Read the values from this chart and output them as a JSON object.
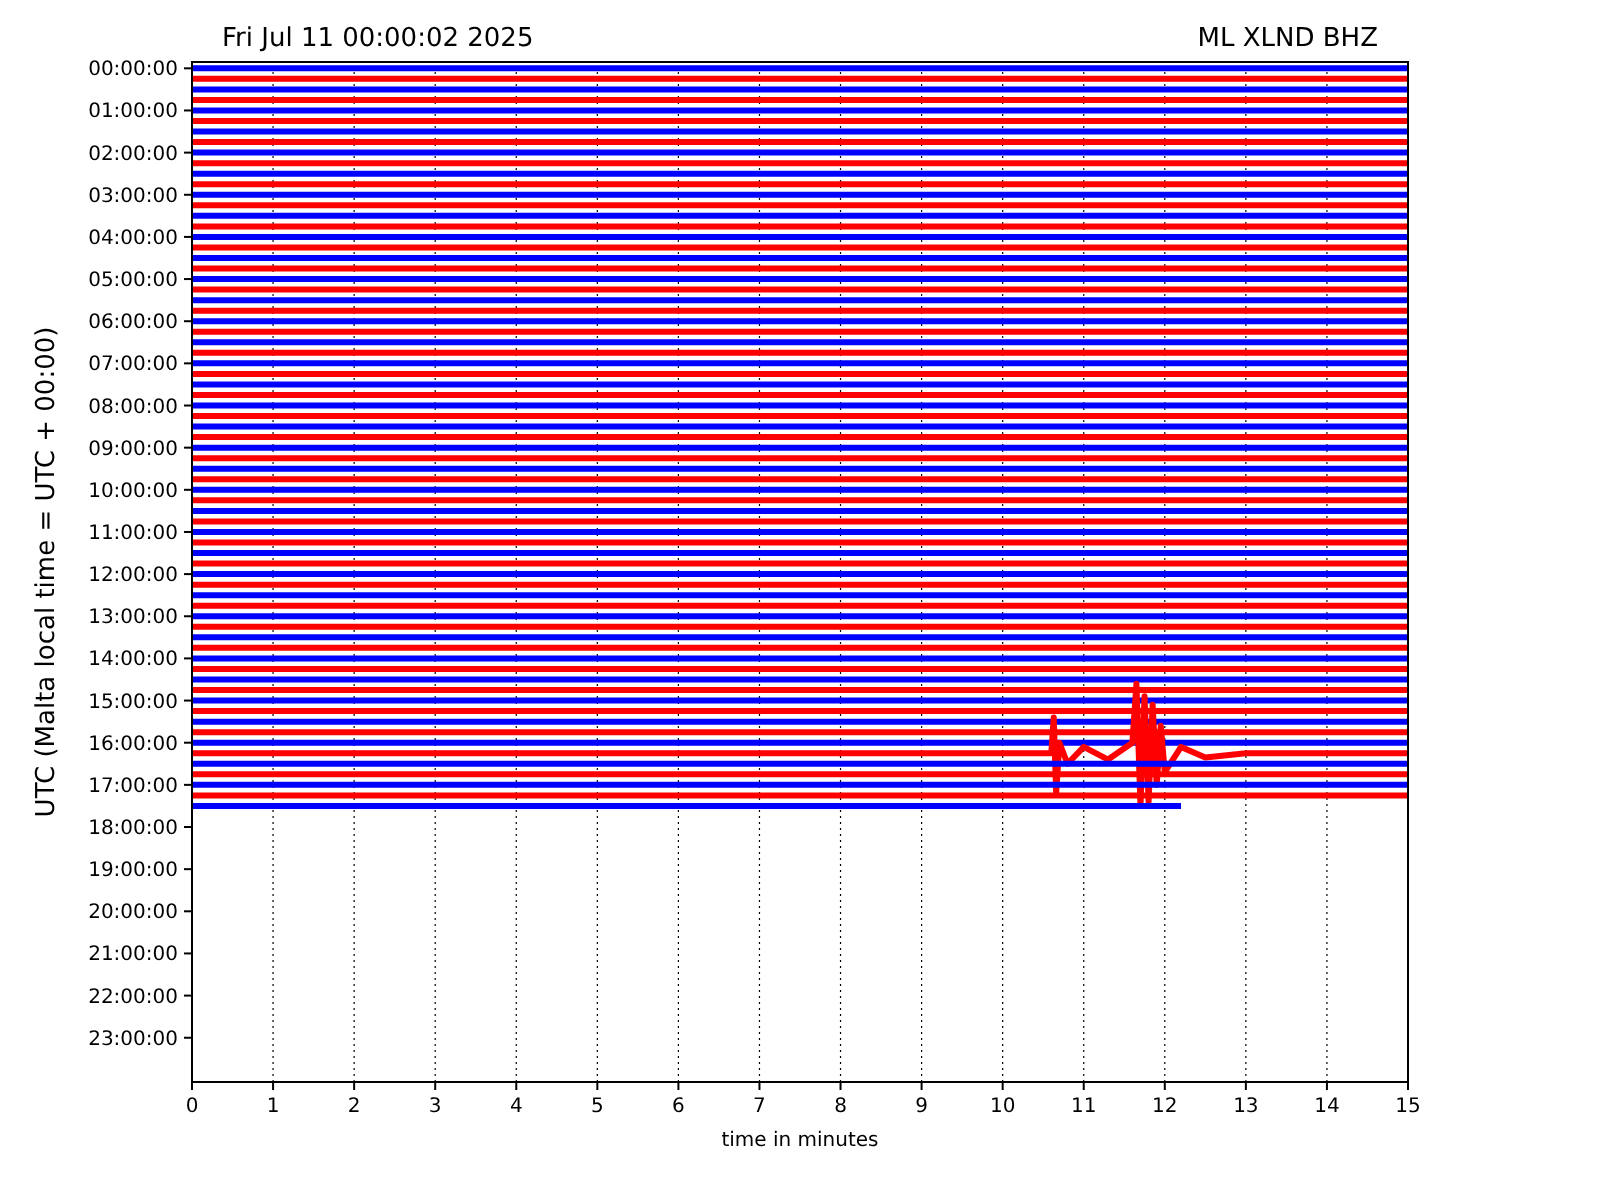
{
  "chart_data": {
    "type": "line",
    "title": "Fri Jul 11 00:00:02 2025",
    "subtitle": "ML XLND BHZ",
    "xlabel": "time in minutes",
    "ylabel": "UTC (Malta local time = UTC + 00:00)",
    "xlim": [
      0,
      15
    ],
    "xticks": [
      0,
      1,
      2,
      3,
      4,
      5,
      6,
      7,
      8,
      9,
      10,
      11,
      12,
      13,
      14,
      15
    ],
    "ylim": [
      24.05,
      -0.15
    ],
    "yticks": [
      {
        "value": 0,
        "label": "00:00:00"
      },
      {
        "value": 1,
        "label": "01:00:00"
      },
      {
        "value": 2,
        "label": "02:00:00"
      },
      {
        "value": 3,
        "label": "03:00:00"
      },
      {
        "value": 4,
        "label": "04:00:00"
      },
      {
        "value": 5,
        "label": "05:00:00"
      },
      {
        "value": 6,
        "label": "06:00:00"
      },
      {
        "value": 7,
        "label": "07:00:00"
      },
      {
        "value": 8,
        "label": "08:00:00"
      },
      {
        "value": 9,
        "label": "09:00:00"
      },
      {
        "value": 10,
        "label": "10:00:00"
      },
      {
        "value": 11,
        "label": "11:00:00"
      },
      {
        "value": 12,
        "label": "12:00:00"
      },
      {
        "value": 13,
        "label": "13:00:00"
      },
      {
        "value": 14,
        "label": "14:00:00"
      },
      {
        "value": 15,
        "label": "15:00:00"
      },
      {
        "value": 16,
        "label": "16:00:00"
      },
      {
        "value": 17,
        "label": "17:00:00"
      },
      {
        "value": 18,
        "label": "18:00:00"
      },
      {
        "value": 19,
        "label": "19:00:00"
      },
      {
        "value": 20,
        "label": "20:00:00"
      },
      {
        "value": 21,
        "label": "21:00:00"
      },
      {
        "value": 22,
        "label": "22:00:00"
      },
      {
        "value": 23,
        "label": "23:00:00"
      }
    ],
    "grid": "x",
    "line_style": "solid",
    "series": [
      {
        "color": "#0000ff",
        "x": [
          0,
          15
        ],
        "values": [
          0,
          0
        ]
      },
      {
        "color": "#ff0000",
        "x": [
          0,
          15
        ],
        "values": [
          0.25,
          0.25
        ]
      },
      {
        "color": "#0000ff",
        "x": [
          0,
          15
        ],
        "values": [
          0.5,
          0.5
        ]
      },
      {
        "color": "#ff0000",
        "x": [
          0,
          15
        ],
        "values": [
          0.75,
          0.75
        ]
      },
      {
        "color": "#0000ff",
        "x": [
          0,
          15
        ],
        "values": [
          1,
          1
        ]
      },
      {
        "color": "#ff0000",
        "x": [
          0,
          15
        ],
        "values": [
          1.25,
          1.25
        ]
      },
      {
        "color": "#0000ff",
        "x": [
          0,
          15
        ],
        "values": [
          1.5,
          1.5
        ]
      },
      {
        "color": "#ff0000",
        "x": [
          0,
          15
        ],
        "values": [
          1.75,
          1.75
        ]
      },
      {
        "color": "#0000ff",
        "x": [
          0,
          15
        ],
        "values": [
          2,
          2
        ]
      },
      {
        "color": "#ff0000",
        "x": [
          0,
          15
        ],
        "values": [
          2.25,
          2.25
        ]
      },
      {
        "color": "#0000ff",
        "x": [
          0,
          15
        ],
        "values": [
          2.5,
          2.5
        ]
      },
      {
        "color": "#ff0000",
        "x": [
          0,
          15
        ],
        "values": [
          2.75,
          2.75
        ]
      },
      {
        "color": "#0000ff",
        "x": [
          0,
          15
        ],
        "values": [
          3,
          3
        ]
      },
      {
        "color": "#ff0000",
        "x": [
          0,
          15
        ],
        "values": [
          3.25,
          3.25
        ]
      },
      {
        "color": "#0000ff",
        "x": [
          0,
          15
        ],
        "values": [
          3.5,
          3.5
        ]
      },
      {
        "color": "#ff0000",
        "x": [
          0,
          15
        ],
        "values": [
          3.75,
          3.75
        ]
      },
      {
        "color": "#0000ff",
        "x": [
          0,
          15
        ],
        "values": [
          4,
          4
        ]
      },
      {
        "color": "#ff0000",
        "x": [
          0,
          15
        ],
        "values": [
          4.25,
          4.25
        ]
      },
      {
        "color": "#0000ff",
        "x": [
          0,
          15
        ],
        "values": [
          4.5,
          4.5
        ]
      },
      {
        "color": "#ff0000",
        "x": [
          0,
          15
        ],
        "values": [
          4.75,
          4.75
        ]
      },
      {
        "color": "#0000ff",
        "x": [
          0,
          15
        ],
        "values": [
          5,
          5
        ]
      },
      {
        "color": "#ff0000",
        "x": [
          0,
          15
        ],
        "values": [
          5.25,
          5.25
        ]
      },
      {
        "color": "#0000ff",
        "x": [
          0,
          15
        ],
        "values": [
          5.5,
          5.5
        ]
      },
      {
        "color": "#ff0000",
        "x": [
          0,
          15
        ],
        "values": [
          5.75,
          5.75
        ]
      },
      {
        "color": "#0000ff",
        "x": [
          0,
          15
        ],
        "values": [
          6,
          6
        ]
      },
      {
        "color": "#ff0000",
        "x": [
          0,
          15
        ],
        "values": [
          6.25,
          6.25
        ]
      },
      {
        "color": "#0000ff",
        "x": [
          0,
          15
        ],
        "values": [
          6.5,
          6.5
        ]
      },
      {
        "color": "#ff0000",
        "x": [
          0,
          15
        ],
        "values": [
          6.75,
          6.75
        ]
      },
      {
        "color": "#0000ff",
        "x": [
          0,
          15
        ],
        "values": [
          7,
          7
        ]
      },
      {
        "color": "#ff0000",
        "x": [
          0,
          15
        ],
        "values": [
          7.25,
          7.25
        ]
      },
      {
        "color": "#0000ff",
        "x": [
          0,
          15
        ],
        "values": [
          7.5,
          7.5
        ]
      },
      {
        "color": "#ff0000",
        "x": [
          0,
          15
        ],
        "values": [
          7.75,
          7.75
        ]
      },
      {
        "color": "#0000ff",
        "x": [
          0,
          15
        ],
        "values": [
          8,
          8
        ]
      },
      {
        "color": "#ff0000",
        "x": [
          0,
          15
        ],
        "values": [
          8.25,
          8.25
        ]
      },
      {
        "color": "#0000ff",
        "x": [
          0,
          15
        ],
        "values": [
          8.5,
          8.5
        ]
      },
      {
        "color": "#ff0000",
        "x": [
          0,
          15
        ],
        "values": [
          8.75,
          8.75
        ]
      },
      {
        "color": "#0000ff",
        "x": [
          0,
          15
        ],
        "values": [
          9,
          9
        ]
      },
      {
        "color": "#ff0000",
        "x": [
          0,
          15
        ],
        "values": [
          9.25,
          9.25
        ]
      },
      {
        "color": "#0000ff",
        "x": [
          0,
          15
        ],
        "values": [
          9.5,
          9.5
        ]
      },
      {
        "color": "#ff0000",
        "x": [
          0,
          15
        ],
        "values": [
          9.75,
          9.75
        ]
      },
      {
        "color": "#0000ff",
        "x": [
          0,
          15
        ],
        "values": [
          10,
          10
        ]
      },
      {
        "color": "#ff0000",
        "x": [
          0,
          15
        ],
        "values": [
          10.25,
          10.25
        ]
      },
      {
        "color": "#0000ff",
        "x": [
          0,
          15
        ],
        "values": [
          10.5,
          10.5
        ]
      },
      {
        "color": "#ff0000",
        "x": [
          0,
          15
        ],
        "values": [
          10.75,
          10.75
        ]
      },
      {
        "color": "#0000ff",
        "x": [
          0,
          15
        ],
        "values": [
          11,
          11
        ]
      },
      {
        "color": "#ff0000",
        "x": [
          0,
          15
        ],
        "values": [
          11.25,
          11.25
        ]
      },
      {
        "color": "#0000ff",
        "x": [
          0,
          15
        ],
        "values": [
          11.5,
          11.5
        ]
      },
      {
        "color": "#ff0000",
        "x": [
          0,
          15
        ],
        "values": [
          11.75,
          11.75
        ]
      },
      {
        "color": "#0000ff",
        "x": [
          0,
          15
        ],
        "values": [
          12,
          12
        ]
      },
      {
        "color": "#ff0000",
        "x": [
          0,
          15
        ],
        "values": [
          12.25,
          12.25
        ]
      },
      {
        "color": "#0000ff",
        "x": [
          0,
          15
        ],
        "values": [
          12.5,
          12.5
        ]
      },
      {
        "color": "#ff0000",
        "x": [
          0,
          15
        ],
        "values": [
          12.75,
          12.75
        ]
      },
      {
        "color": "#0000ff",
        "x": [
          0,
          15
        ],
        "values": [
          13,
          13
        ]
      },
      {
        "color": "#ff0000",
        "x": [
          0,
          15
        ],
        "values": [
          13.25,
          13.25
        ]
      },
      {
        "color": "#0000ff",
        "x": [
          0,
          15
        ],
        "values": [
          13.5,
          13.5
        ]
      },
      {
        "color": "#ff0000",
        "x": [
          0,
          15
        ],
        "values": [
          13.75,
          13.75
        ]
      },
      {
        "color": "#0000ff",
        "x": [
          0,
          15
        ],
        "values": [
          14,
          14
        ]
      },
      {
        "color": "#ff0000",
        "x": [
          0,
          15
        ],
        "values": [
          14.25,
          14.25
        ]
      },
      {
        "color": "#0000ff",
        "x": [
          0,
          15
        ],
        "values": [
          14.5,
          14.5
        ]
      },
      {
        "color": "#ff0000",
        "x": [
          0,
          15
        ],
        "values": [
          14.75,
          14.75
        ]
      },
      {
        "color": "#0000ff",
        "x": [
          0,
          15
        ],
        "values": [
          15,
          15
        ]
      },
      {
        "color": "#ff0000",
        "x": [
          0,
          15
        ],
        "values": [
          15.25,
          15.25
        ]
      },
      {
        "color": "#0000ff",
        "x": [
          0,
          15
        ],
        "values": [
          15.5,
          15.5
        ]
      },
      {
        "color": "#ff0000",
        "x": [
          0,
          15
        ],
        "values": [
          15.75,
          15.75
        ]
      },
      {
        "color": "#0000ff",
        "x": [
          0,
          15
        ],
        "values": [
          16,
          16
        ]
      },
      {
        "color": "#ff0000",
        "x": [
          0,
          10.6,
          10.63,
          10.66,
          10.7,
          10.8,
          11.0,
          11.3,
          11.6,
          11.65,
          11.7,
          11.75,
          11.8,
          11.85,
          11.9,
          11.95,
          12.0,
          12.2,
          12.5,
          13,
          15
        ],
        "values": [
          16.25,
          16.25,
          15.4,
          17.2,
          16.0,
          16.5,
          16.1,
          16.4,
          16.0,
          14.6,
          17.5,
          14.9,
          17.4,
          15.1,
          17.0,
          15.6,
          16.7,
          16.1,
          16.35,
          16.25,
          16.25
        ]
      },
      {
        "color": "#0000ff",
        "x": [
          0,
          15
        ],
        "values": [
          16.5,
          16.5
        ]
      },
      {
        "color": "#ff0000",
        "x": [
          0,
          15
        ],
        "values": [
          16.75,
          16.75
        ]
      },
      {
        "color": "#0000ff",
        "x": [
          0,
          15
        ],
        "values": [
          17,
          17
        ]
      },
      {
        "color": "#ff0000",
        "x": [
          0,
          15
        ],
        "values": [
          17.25,
          17.25
        ]
      },
      {
        "color": "#0000ff",
        "x": [
          0,
          12.2
        ],
        "values": [
          17.5,
          17.5
        ]
      }
    ]
  }
}
